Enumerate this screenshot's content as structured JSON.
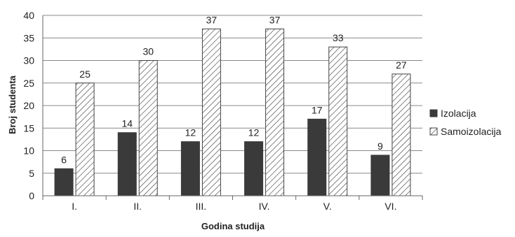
{
  "chart_data": {
    "type": "bar",
    "title": "",
    "xlabel": "Godina studija",
    "ylabel": "Broj studenta",
    "categories": [
      "I.",
      "II.",
      "III.",
      "IV.",
      "V.",
      "VI."
    ],
    "series": [
      {
        "name": "Izolacija",
        "values": [
          6,
          14,
          12,
          12,
          17,
          9
        ],
        "color": "#3a3a3a",
        "pattern": "solid"
      },
      {
        "name": "Samoizolacija",
        "values": [
          25,
          30,
          37,
          37,
          33,
          27
        ],
        "color": "#555555",
        "pattern": "diagonal-hatch"
      }
    ],
    "ylim": [
      0,
      40
    ],
    "yticks": [
      0,
      5,
      10,
      15,
      20,
      25,
      30,
      35,
      40
    ],
    "grid": true,
    "legend_position": "right",
    "data_labels": true
  }
}
